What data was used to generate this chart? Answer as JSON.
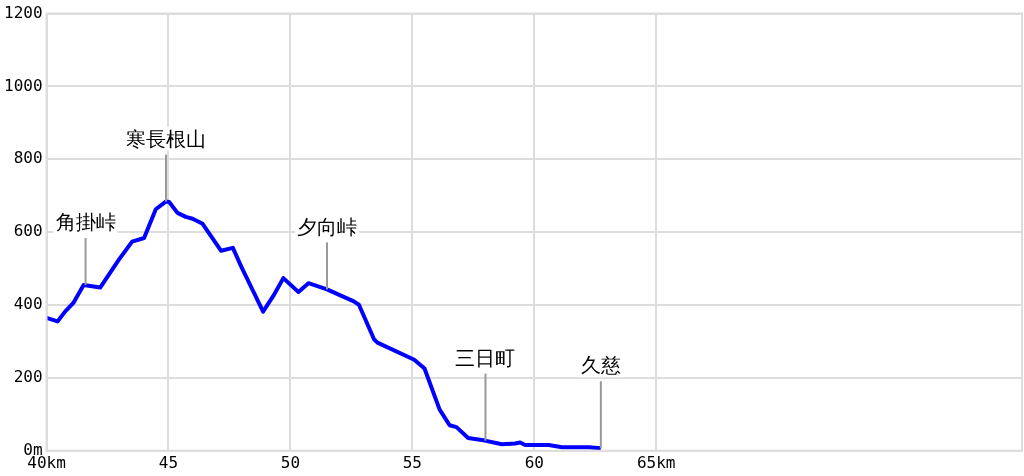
{
  "chart_data": {
    "type": "line",
    "x": [
      40.0,
      40.45,
      40.76,
      41.1,
      41.52,
      42.2,
      42.96,
      43.51,
      44.0,
      44.48,
      44.89,
      45.03,
      45.37,
      45.71,
      45.99,
      46.4,
      47.16,
      47.64,
      47.99,
      48.88,
      49.3,
      49.71,
      50.33,
      50.74,
      51.5,
      52.6,
      52.81,
      53.43,
      53.57,
      55.08,
      55.5,
      56.12,
      56.53,
      56.81,
      57.29,
      57.98,
      58.67,
      59.21,
      59.42,
      59.63,
      60.59,
      61.14,
      62.24,
      62.73
    ],
    "series": [
      {
        "color": "#0000ff",
        "values": [
          365,
          355,
          382,
          406,
          455,
          448,
          524,
          574,
          584,
          663,
          684,
          683,
          653,
          642,
          637,
          623,
          549,
          557,
          505,
          382,
          425,
          474,
          436,
          460,
          443,
          410,
          401,
          306,
          297,
          250,
          226,
          113,
          70,
          65,
          35,
          28,
          18,
          20,
          23,
          16,
          16,
          10,
          10,
          7
        ]
      }
    ],
    "xlim": [
      40,
      80
    ],
    "xticks": [
      {
        "value": 40,
        "label": "40km"
      },
      {
        "value": 45,
        "label": "45"
      },
      {
        "value": 50,
        "label": "50"
      },
      {
        "value": 55,
        "label": "55"
      },
      {
        "value": 60,
        "label": "60"
      },
      {
        "value": 65,
        "label": "65km"
      }
    ],
    "ylim": [
      0,
      1200
    ],
    "yticks": [
      {
        "value": 0,
        "label": "0m"
      },
      200,
      400,
      600,
      800,
      1000,
      1200
    ],
    "grid": true,
    "legend": false,
    "marker": "none",
    "line_style": "solid",
    "annotations": [
      {
        "text": "角掛峠",
        "x": 41.6,
        "y": 455
      },
      {
        "text": "寒長根山",
        "x": 44.9,
        "y": 684
      },
      {
        "text": "夕向峠",
        "x": 51.5,
        "y": 443
      },
      {
        "text": "三日町",
        "x": 58.0,
        "y": 28
      },
      {
        "text": "久慈",
        "x": 62.73,
        "y": 7
      }
    ]
  }
}
